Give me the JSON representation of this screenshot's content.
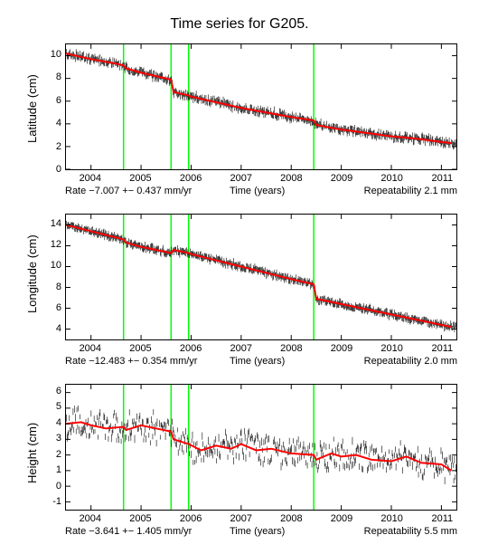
{
  "title": "Time series for G205.",
  "title_fontsize": 16,
  "background_color": "#ffffff",
  "axis_color": "#000000",
  "tick_fontsize": 11,
  "label_fontsize": 13,
  "vline_color": "#00ff00",
  "vline_width": 1.5,
  "scatter_color": "#000000",
  "trend_color": "#ff0000",
  "trend_width": 2,
  "xlim": [
    2003.5,
    2011.3
  ],
  "xticks": [
    2004,
    2005,
    2006,
    2007,
    2008,
    2009,
    2010,
    2011
  ],
  "xlabel": "Time (years)",
  "vlines": [
    2004.65,
    2005.6,
    2005.95,
    2008.45
  ],
  "panels": [
    {
      "id": "lat",
      "ylabel": "Latitude (cm)",
      "ylim": [
        0,
        11
      ],
      "yticks": [
        0,
        2,
        4,
        6,
        8,
        10
      ],
      "rate_text": "Rate −7.007 +− 0.437 mm/yr",
      "repeat_text": "Repeatability 2.1 mm",
      "scatter_noise": 0.25,
      "trend": [
        [
          2003.5,
          10.2
        ],
        [
          2004.0,
          9.7
        ],
        [
          2004.5,
          9.3
        ],
        [
          2004.65,
          9.15
        ],
        [
          2004.7,
          8.9
        ],
        [
          2005.0,
          8.5
        ],
        [
          2005.5,
          8.0
        ],
        [
          2005.6,
          7.9
        ],
        [
          2005.65,
          6.8
        ],
        [
          2005.95,
          6.5
        ],
        [
          2006.0,
          6.4
        ],
        [
          2006.5,
          5.9
        ],
        [
          2007.0,
          5.4
        ],
        [
          2007.5,
          5.0
        ],
        [
          2008.0,
          4.6
        ],
        [
          2008.45,
          4.3
        ],
        [
          2008.5,
          3.9
        ],
        [
          2009.0,
          3.5
        ],
        [
          2009.5,
          3.2
        ],
        [
          2010.0,
          2.9
        ],
        [
          2010.5,
          2.7
        ],
        [
          2011.0,
          2.4
        ],
        [
          2011.2,
          2.3
        ]
      ]
    },
    {
      "id": "lon",
      "ylabel": "Longitude (cm)",
      "ylim": [
        3,
        15
      ],
      "yticks": [
        4,
        6,
        8,
        10,
        12,
        14
      ],
      "rate_text": "Rate −12.483 +− 0.354 mm/yr",
      "repeat_text": "Repeatability 2.0 mm",
      "scatter_noise": 0.22,
      "trend": [
        [
          2003.5,
          14.0
        ],
        [
          2004.0,
          13.4
        ],
        [
          2004.5,
          12.8
        ],
        [
          2004.65,
          12.6
        ],
        [
          2004.7,
          12.3
        ],
        [
          2005.0,
          11.9
        ],
        [
          2005.5,
          11.4
        ],
        [
          2005.6,
          11.3
        ],
        [
          2005.65,
          11.6
        ],
        [
          2005.95,
          11.3
        ],
        [
          2006.0,
          11.2
        ],
        [
          2006.5,
          10.6
        ],
        [
          2007.0,
          10.0
        ],
        [
          2007.5,
          9.4
        ],
        [
          2008.0,
          8.8
        ],
        [
          2008.45,
          8.3
        ],
        [
          2008.5,
          6.9
        ],
        [
          2009.0,
          6.4
        ],
        [
          2009.5,
          5.9
        ],
        [
          2010.0,
          5.4
        ],
        [
          2010.5,
          4.9
        ],
        [
          2011.0,
          4.4
        ],
        [
          2011.2,
          4.2
        ]
      ]
    },
    {
      "id": "hgt",
      "ylabel": "Height (cm)",
      "ylim": [
        -1.5,
        6.5
      ],
      "yticks": [
        -1,
        0,
        1,
        2,
        3,
        4,
        5,
        6
      ],
      "rate_text": "Rate −3.641 +− 1.405 mm/yr",
      "repeat_text": "Repeatability 5.5 mm",
      "scatter_noise": 0.85,
      "trend": [
        [
          2003.5,
          4.0
        ],
        [
          2003.8,
          4.1
        ],
        [
          2004.0,
          3.9
        ],
        [
          2004.3,
          3.7
        ],
        [
          2004.65,
          3.8
        ],
        [
          2004.7,
          3.6
        ],
        [
          2005.0,
          3.9
        ],
        [
          2005.3,
          3.7
        ],
        [
          2005.6,
          3.5
        ],
        [
          2005.65,
          3.0
        ],
        [
          2005.95,
          2.7
        ],
        [
          2006.2,
          2.3
        ],
        [
          2006.5,
          2.6
        ],
        [
          2006.8,
          2.4
        ],
        [
          2007.0,
          2.7
        ],
        [
          2007.3,
          2.3
        ],
        [
          2007.6,
          2.4
        ],
        [
          2008.0,
          2.1
        ],
        [
          2008.45,
          2.0
        ],
        [
          2008.5,
          1.7
        ],
        [
          2008.8,
          2.1
        ],
        [
          2009.0,
          1.9
        ],
        [
          2009.3,
          2.0
        ],
        [
          2009.6,
          1.7
        ],
        [
          2010.0,
          1.6
        ],
        [
          2010.3,
          1.9
        ],
        [
          2010.6,
          1.5
        ],
        [
          2011.0,
          1.4
        ],
        [
          2011.2,
          1.0
        ]
      ]
    }
  ]
}
